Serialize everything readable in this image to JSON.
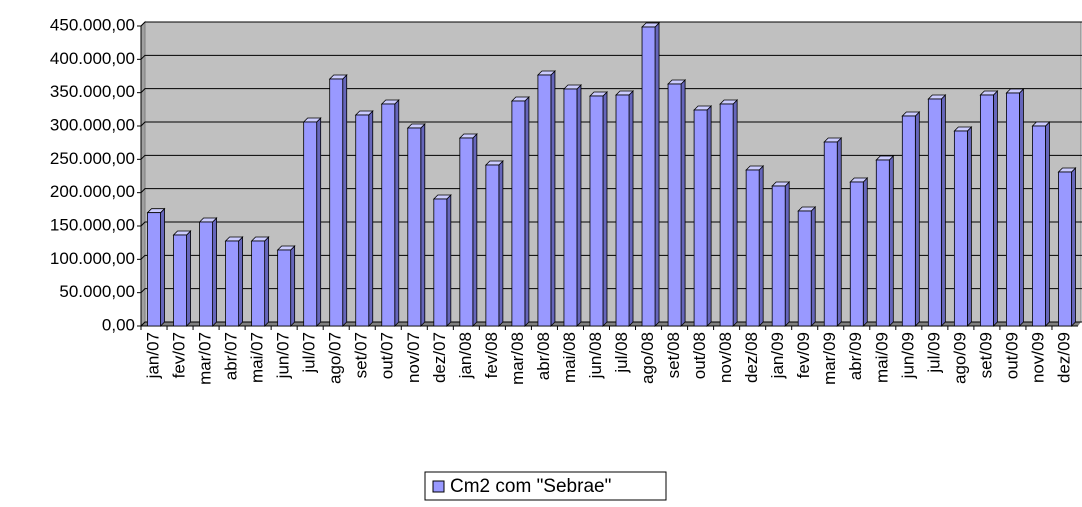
{
  "chart_data": {
    "type": "bar",
    "categories": [
      "jan/07",
      "fev/07",
      "mar/07",
      "abr/07",
      "mai/07",
      "jun/07",
      "jul/07",
      "ago/07",
      "set/07",
      "out/07",
      "nov/07",
      "dez/07",
      "jan/08",
      "fev/08",
      "mar/08",
      "abr/08",
      "mai/08",
      "jun/08",
      "jul/08",
      "ago/08",
      "set/08",
      "out/08",
      "nov/08",
      "dez/08",
      "jan/09",
      "fev/09",
      "mar/09",
      "abr/09",
      "mai/09",
      "jun/09",
      "jul/09",
      "ago/09",
      "set/09",
      "out/09",
      "nov/09",
      "dez/09"
    ],
    "series": [
      {
        "name": "Cm2 com \"Sebrae\"",
        "color": "#9999ff",
        "values": [
          170000,
          136500,
          156000,
          127500,
          127500,
          114000,
          306000,
          370500,
          316500,
          333000,
          297000,
          190500,
          282000,
          241500,
          337500,
          376500,
          355500,
          345000,
          346500,
          448500,
          363000,
          324000,
          333000,
          234000,
          210000,
          172500,
          276000,
          216000,
          249000,
          315000,
          340500,
          292500,
          346500,
          349500,
          300000,
          231000
        ]
      }
    ],
    "ylim": [
      0,
      450000
    ],
    "yticks": [
      {
        "value": 0,
        "label": "0,00"
      },
      {
        "value": 50000,
        "label": "50.000,00"
      },
      {
        "value": 100000,
        "label": "100.000,00"
      },
      {
        "value": 150000,
        "label": "150.000,00"
      },
      {
        "value": 200000,
        "label": "200.000,00"
      },
      {
        "value": 250000,
        "label": "250.000,00"
      },
      {
        "value": 300000,
        "label": "300.000,00"
      },
      {
        "value": 350000,
        "label": "350.000,00"
      },
      {
        "value": 400000,
        "label": "400.000,00"
      },
      {
        "value": 450000,
        "label": "450.000,00"
      }
    ],
    "grid": true,
    "legend": "bottom"
  }
}
